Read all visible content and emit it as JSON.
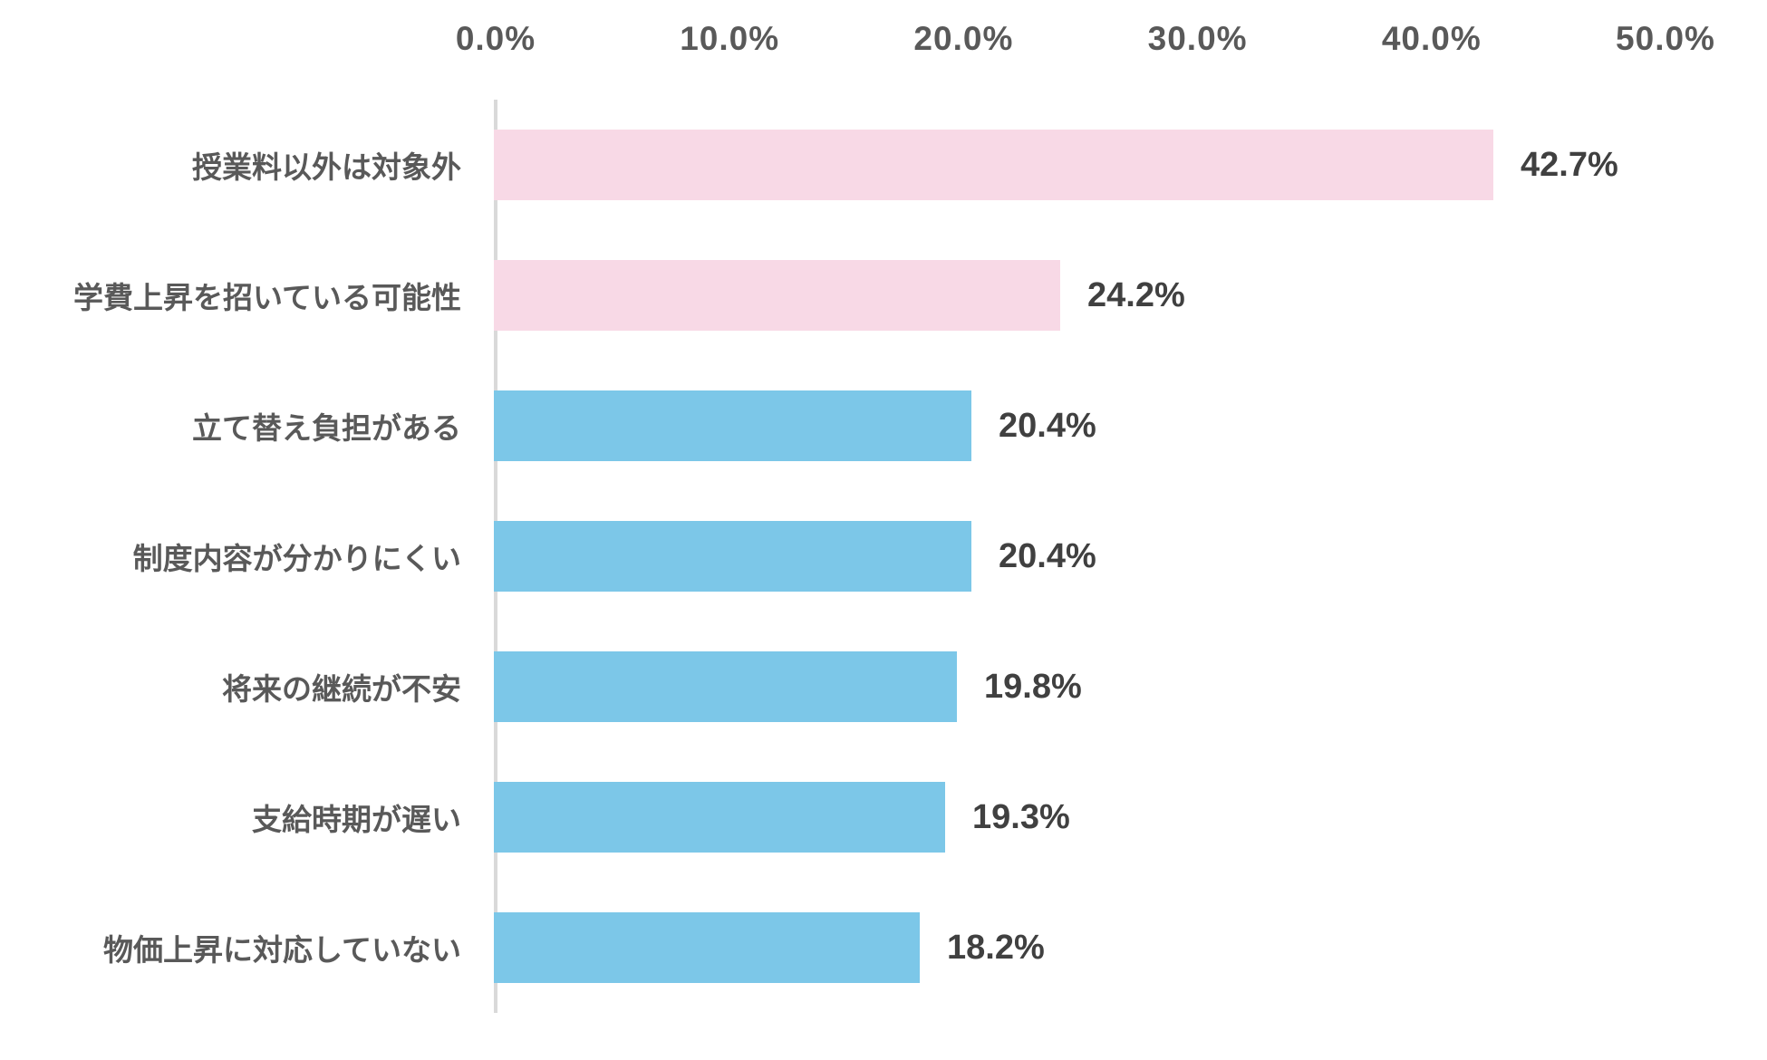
{
  "chart_data": {
    "type": "bar",
    "orientation": "horizontal",
    "title": "",
    "xlabel": "",
    "ylabel": "",
    "categories": [
      "授業料以外は対象外",
      "学費上昇を招いている可能性",
      "立て替え負担がある",
      "制度内容が分かりにくい",
      "将来の継続が不安",
      "支給時期が遅い",
      "物価上昇に対応していない"
    ],
    "values": [
      42.7,
      24.2,
      20.4,
      20.4,
      19.8,
      19.3,
      18.2
    ],
    "value_labels": [
      "42.7%",
      "24.2%",
      "20.4%",
      "20.4%",
      "19.8%",
      "19.3%",
      "18.2%"
    ],
    "bar_colors": [
      "#f8d9e6",
      "#f8d9e6",
      "#7cc7e8",
      "#7cc7e8",
      "#7cc7e8",
      "#7cc7e8",
      "#7cc7e8"
    ],
    "xlim": [
      0,
      50
    ],
    "xticks": [
      0,
      10,
      20,
      30,
      40,
      50
    ],
    "xtick_labels": [
      "0.0%",
      "10.0%",
      "20.0%",
      "30.0%",
      "40.0%",
      "50.0%"
    ],
    "grid": false,
    "legend": false,
    "axis_line_color": "#d9d9d9",
    "tick_text_color": "#595959",
    "category_text_color": "#595959",
    "value_text_color": "#404040",
    "background_color": "#ffffff"
  }
}
